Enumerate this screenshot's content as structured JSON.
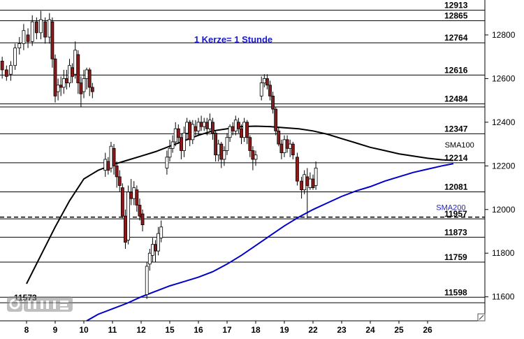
{
  "chart_data": {
    "type": "candlestick",
    "title": "1 Kerze= 1 Stunde",
    "timeframe_note": "1 Kerze= 1 Stunde",
    "x_ticks": [
      "8",
      "9",
      "10",
      "11",
      "12",
      "15",
      "16",
      "17",
      "18",
      "19",
      "22",
      "23",
      "24",
      "25",
      "26"
    ],
    "y_ticks": [
      11600,
      11800,
      12000,
      12200,
      12400,
      12600,
      12800
    ],
    "ylim": [
      11490,
      12960
    ],
    "horizontal_levels": [
      {
        "value": 12913,
        "label": "12913",
        "style": "solid"
      },
      {
        "value": 12865,
        "label": "12865",
        "style": "solid"
      },
      {
        "value": 12764,
        "label": "12764",
        "style": "solid"
      },
      {
        "value": 12616,
        "label": "12616",
        "style": "solid"
      },
      {
        "value": 12484,
        "label": "12484",
        "style": "solid"
      },
      {
        "value": 12470,
        "label": "",
        "style": "solid"
      },
      {
        "value": 12347,
        "label": "12347",
        "style": "solid"
      },
      {
        "value": 12214,
        "label": "12214",
        "style": "solid"
      },
      {
        "value": 12081,
        "label": "12081",
        "style": "solid"
      },
      {
        "value": 11965,
        "label": "",
        "style": "dashed"
      },
      {
        "value": 11957,
        "label": "11957",
        "style": "solid"
      },
      {
        "value": 11873,
        "label": "11873",
        "style": "solid"
      },
      {
        "value": 11759,
        "label": "11759",
        "style": "solid"
      },
      {
        "value": 11598,
        "label": "11598",
        "style": "solid"
      },
      {
        "value": 11573,
        "label": "11573",
        "style": "solid"
      }
    ],
    "series": [
      {
        "name": "SMA100",
        "color": "#000000",
        "x": [
          8.0,
          8.5,
          9.0,
          9.5,
          10.0,
          10.5,
          11.0,
          11.5,
          12.0,
          12.5,
          13.0,
          13.5,
          14.0,
          14.5,
          15.0,
          15.5,
          16.0,
          16.5,
          17.0,
          17.5,
          18.0,
          18.5,
          19.0,
          19.5,
          20.0,
          20.5,
          21.0,
          21.5,
          22.0,
          22.5,
          22.9
        ],
        "y": [
          11660,
          11790,
          11920,
          12040,
          12140,
          12180,
          12205,
          12225,
          12245,
          12265,
          12290,
          12315,
          12340,
          12360,
          12370,
          12380,
          12382,
          12380,
          12375,
          12370,
          12360,
          12345,
          12325,
          12305,
          12285,
          12270,
          12255,
          12245,
          12235,
          12228,
          12225
        ]
      },
      {
        "name": "SMA200",
        "color": "#0000cc",
        "x": [
          10.1,
          10.5,
          11.0,
          11.5,
          12.0,
          12.5,
          13.0,
          13.5,
          14.0,
          14.5,
          15.0,
          15.5,
          16.0,
          16.5,
          17.0,
          17.5,
          18.0,
          18.5,
          19.0,
          19.5,
          20.0,
          20.5,
          21.0,
          21.5,
          22.0,
          22.5,
          22.9
        ],
        "y": [
          11490,
          11520,
          11545,
          11570,
          11600,
          11625,
          11650,
          11670,
          11690,
          11715,
          11750,
          11790,
          11835,
          11880,
          11925,
          11965,
          12000,
          12030,
          12060,
          12085,
          12105,
          12130,
          12150,
          12170,
          12185,
          12200,
          12210
        ]
      }
    ],
    "series_labels": [
      {
        "text": "SMA100",
        "x": 22.6,
        "y": 12285
      },
      {
        "text": "SMA200",
        "x": 22.3,
        "y": 11998
      }
    ],
    "candles": [
      [
        7.15,
        12680,
        12640,
        12700,
        12600
      ],
      [
        7.3,
        12640,
        12610,
        12660,
        12590
      ],
      [
        7.45,
        12620,
        12660,
        12680,
        12590
      ],
      [
        7.6,
        12660,
        12740,
        12760,
        12640
      ],
      [
        7.75,
        12740,
        12760,
        12790,
        12710
      ],
      [
        7.9,
        12760,
        12820,
        12850,
        12730
      ],
      [
        8.05,
        12800,
        12770,
        12830,
        12740
      ],
      [
        8.2,
        12770,
        12860,
        12890,
        12750
      ],
      [
        8.35,
        12860,
        12810,
        12880,
        12780
      ],
      [
        8.5,
        12810,
        12870,
        12910,
        12780
      ],
      [
        8.65,
        12860,
        12790,
        12880,
        12760
      ],
      [
        8.8,
        12790,
        12870,
        12900,
        12760
      ],
      [
        8.9,
        12860,
        12690,
        12880,
        12650
      ],
      [
        9.0,
        12690,
        12520,
        12710,
        12490
      ],
      [
        9.1,
        12540,
        12570,
        12600,
        12500
      ],
      [
        9.2,
        12570,
        12560,
        12610,
        12520
      ],
      [
        9.3,
        12560,
        12600,
        12640,
        12530
      ],
      [
        9.4,
        12600,
        12580,
        12640,
        12550
      ],
      [
        9.5,
        12580,
        12660,
        12690,
        12560
      ],
      [
        9.6,
        12650,
        12610,
        12670,
        12580
      ],
      [
        9.7,
        12620,
        12730,
        12770,
        12600
      ],
      [
        9.8,
        12710,
        12580,
        12730,
        12530
      ],
      [
        9.9,
        12580,
        12530,
        12610,
        12470
      ],
      [
        10.0,
        12540,
        12600,
        12640,
        12510
      ],
      [
        10.1,
        12600,
        12640,
        12650,
        12550
      ],
      [
        10.2,
        12640,
        12560,
        12650,
        12520
      ],
      [
        10.3,
        12560,
        12540,
        12580,
        12510
      ],
      [
        10.75,
        12180,
        12230,
        12260,
        12150
      ],
      [
        10.85,
        12220,
        12180,
        12240,
        12160
      ],
      [
        10.95,
        12190,
        12290,
        12310,
        12170
      ],
      [
        11.05,
        12280,
        12200,
        12300,
        12160
      ],
      [
        11.15,
        12200,
        12150,
        12220,
        12100
      ],
      [
        11.25,
        12150,
        12110,
        12180,
        12080
      ],
      [
        11.35,
        12100,
        11970,
        12120,
        11960
      ],
      [
        11.45,
        11970,
        11850,
        12000,
        11820
      ],
      [
        11.55,
        11860,
        12080,
        12110,
        11840
      ],
      [
        11.65,
        12080,
        12050,
        12140,
        12020
      ],
      [
        11.75,
        12050,
        12100,
        12130,
        12020
      ],
      [
        11.85,
        12090,
        12020,
        12110,
        11990
      ],
      [
        11.95,
        12020,
        11970,
        12050,
        11950
      ],
      [
        12.05,
        11980,
        11930,
        12000,
        11900
      ],
      [
        12.2,
        11610,
        11740,
        11760,
        11590
      ],
      [
        12.3,
        11750,
        11800,
        11820,
        11720
      ],
      [
        12.4,
        11790,
        11840,
        11870,
        11760
      ],
      [
        12.5,
        11840,
        11810,
        11860,
        11760
      ],
      [
        12.6,
        11810,
        11890,
        11920,
        11790
      ],
      [
        12.7,
        11870,
        11920,
        11950,
        11850
      ],
      [
        12.9,
        12190,
        12240,
        12270,
        12160
      ],
      [
        13.0,
        12240,
        12280,
        12320,
        12220
      ],
      [
        13.1,
        12280,
        12310,
        12340,
        12260
      ],
      [
        13.2,
        12310,
        12370,
        12400,
        12290
      ],
      [
        13.3,
        12370,
        12330,
        12390,
        12300
      ],
      [
        13.4,
        12330,
        12270,
        12350,
        12230
      ],
      [
        13.5,
        12270,
        12350,
        12380,
        12240
      ],
      [
        13.6,
        12350,
        12400,
        12420,
        12320
      ],
      [
        13.7,
        12400,
        12320,
        12410,
        12290
      ],
      [
        13.8,
        12320,
        12390,
        12410,
        12300
      ],
      [
        13.9,
        12380,
        12360,
        12410,
        12340
      ],
      [
        14.0,
        12360,
        12400,
        12420,
        12340
      ],
      [
        14.1,
        12400,
        12380,
        12430,
        12360
      ],
      [
        14.2,
        12380,
        12400,
        12420,
        12360
      ],
      [
        14.3,
        12400,
        12370,
        12420,
        12340
      ],
      [
        14.4,
        12370,
        12410,
        12440,
        12360
      ],
      [
        14.5,
        12400,
        12350,
        12420,
        12320
      ],
      [
        14.6,
        12350,
        12250,
        12360,
        12220
      ],
      [
        14.7,
        12250,
        12300,
        12320,
        12220
      ],
      [
        14.8,
        12300,
        12230,
        12310,
        12190
      ],
      [
        14.9,
        12230,
        12270,
        12290,
        12200
      ],
      [
        15.0,
        12270,
        12330,
        12350,
        12250
      ],
      [
        15.1,
        12330,
        12380,
        12390,
        12310
      ],
      [
        15.2,
        12380,
        12360,
        12400,
        12340
      ],
      [
        15.3,
        12360,
        12410,
        12430,
        12340
      ],
      [
        15.4,
        12400,
        12370,
        12420,
        12350
      ],
      [
        15.5,
        12370,
        12330,
        12390,
        12300
      ],
      [
        15.6,
        12330,
        12400,
        12420,
        12310
      ],
      [
        15.7,
        12400,
        12330,
        12410,
        12300
      ],
      [
        15.8,
        12330,
        12270,
        12340,
        12240
      ],
      [
        15.9,
        12270,
        12230,
        12290,
        12180
      ],
      [
        16.0,
        12230,
        12250,
        12270,
        12200
      ],
      [
        16.2,
        12520,
        12580,
        12610,
        12500
      ],
      [
        16.3,
        12580,
        12600,
        12620,
        12560
      ],
      [
        16.4,
        12600,
        12570,
        12620,
        12550
      ],
      [
        16.5,
        12570,
        12520,
        12590,
        12500
      ],
      [
        16.6,
        12520,
        12460,
        12540,
        12440
      ],
      [
        16.7,
        12460,
        12360,
        12470,
        12340
      ],
      [
        16.8,
        12360,
        12300,
        12380,
        12290
      ],
      [
        16.9,
        12300,
        12260,
        12320,
        12230
      ],
      [
        17.0,
        12260,
        12320,
        12340,
        12240
      ],
      [
        17.1,
        12320,
        12280,
        12340,
        12260
      ],
      [
        17.2,
        12280,
        12300,
        12320,
        12240
      ],
      [
        17.3,
        12300,
        12250,
        12310,
        12230
      ],
      [
        17.45,
        12240,
        12130,
        12260,
        12110
      ],
      [
        17.6,
        12130,
        12090,
        12150,
        12050
      ],
      [
        17.7,
        12090,
        12160,
        12180,
        12070
      ],
      [
        17.8,
        12150,
        12110,
        12190,
        11960
      ],
      [
        17.9,
        12100,
        12140,
        12170,
        12090
      ],
      [
        18.0,
        12140,
        12100,
        12160,
        12090
      ],
      [
        18.1,
        12110,
        12190,
        12220,
        12090
      ]
    ]
  }
}
